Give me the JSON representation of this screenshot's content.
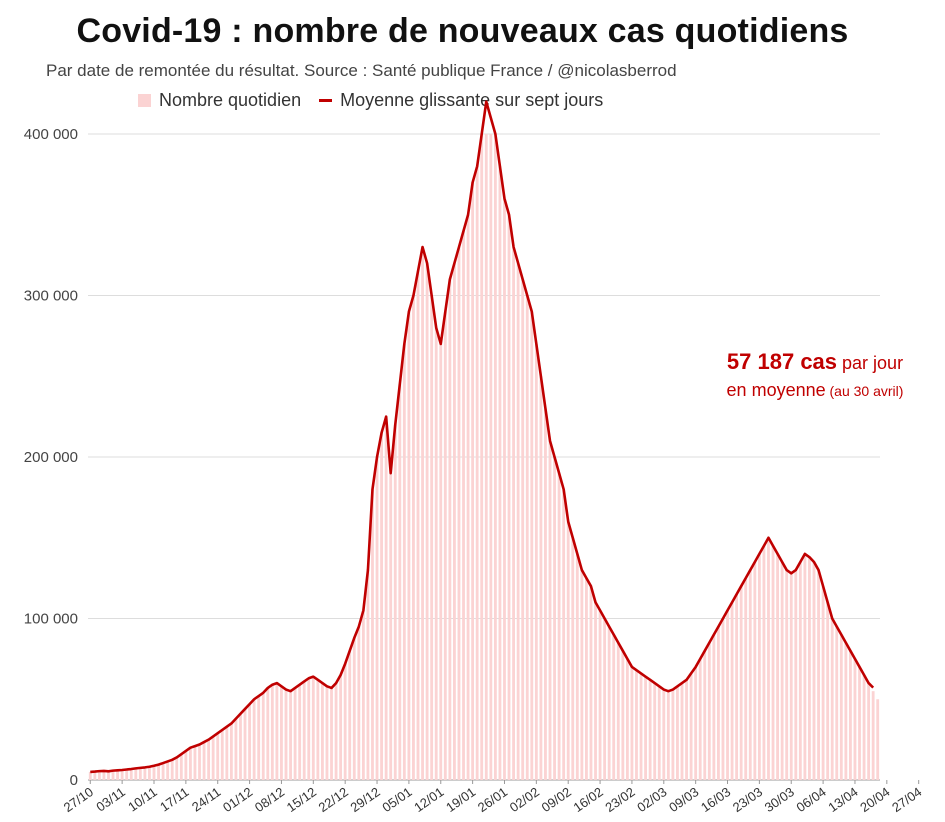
{
  "chart_data": {
    "type": "bar",
    "title": "Covid-19 : nombre de nouveaux cas quotidiens",
    "subtitle": "Par date de remontée du résultat. Source : Santé publique France / @nicolasberrod",
    "ylim": [
      0,
      400000
    ],
    "yticks": [
      0,
      100000,
      200000,
      300000,
      400000
    ],
    "ytick_labels": [
      "0",
      "100 000",
      "200 000",
      "300 000",
      "400 000"
    ],
    "xtick_labels": [
      "27/10",
      "03/11",
      "10/11",
      "17/11",
      "24/11",
      "01/12",
      "08/12",
      "15/12",
      "22/12",
      "29/12",
      "05/01",
      "12/01",
      "19/01",
      "26/01",
      "02/02",
      "09/02",
      "16/02",
      "23/02",
      "02/03",
      "09/03",
      "16/03",
      "23/03",
      "30/03",
      "06/04",
      "13/04",
      "20/04",
      "27/04"
    ],
    "grid": true,
    "legend_position": "top",
    "colors": {
      "bars": "#fbd3d3",
      "line": "#c00000",
      "grid": "#dddddd"
    },
    "series": [
      {
        "name": "Nombre quotidien",
        "type": "bar",
        "values": [
          5000,
          5200,
          5500,
          5600,
          5400,
          5800,
          6000,
          6200,
          6500,
          6800,
          7200,
          7500,
          7800,
          8200,
          8800,
          9500,
          10500,
          11500,
          12500,
          14000,
          16000,
          18000,
          20000,
          21000,
          22000,
          23500,
          25000,
          27000,
          29000,
          31000,
          33000,
          35000,
          38000,
          41000,
          44000,
          47000,
          50000,
          52000,
          54000,
          57000,
          59000,
          60000,
          58000,
          56000,
          55000,
          57000,
          59000,
          61000,
          63000,
          64000,
          62000,
          60000,
          58000,
          57000,
          60000,
          65000,
          72000,
          80000,
          88000,
          95000,
          105000,
          130000,
          180000,
          200000,
          215000,
          225000,
          190000,
          220000,
          245000,
          270000,
          290000,
          300000,
          315000,
          330000,
          320000,
          300000,
          280000,
          270000,
          290000,
          310000,
          320000,
          330000,
          340000,
          350000,
          370000,
          380000,
          400000,
          420000,
          410000,
          400000,
          380000,
          360000,
          350000,
          330000,
          320000,
          310000,
          300000,
          290000,
          270000,
          250000,
          230000,
          210000,
          200000,
          190000,
          180000,
          160000,
          150000,
          140000,
          130000,
          125000,
          120000,
          110000,
          105000,
          100000,
          95000,
          90000,
          85000,
          80000,
          75000,
          70000,
          68000,
          66000,
          64000,
          62000,
          60000,
          58000,
          56000,
          55000,
          56000,
          58000,
          60000,
          62000,
          66000,
          70000,
          75000,
          80000,
          85000,
          90000,
          95000,
          100000,
          105000,
          110000,
          115000,
          120000,
          125000,
          130000,
          135000,
          140000,
          145000,
          150000,
          145000,
          140000,
          135000,
          130000,
          128000,
          130000,
          135000,
          140000,
          138000,
          135000,
          130000,
          120000,
          110000,
          100000,
          95000,
          90000,
          85000,
          80000,
          75000,
          70000,
          65000,
          60000,
          55000,
          50000
        ]
      },
      {
        "name": "Moyenne glissante sur sept jours",
        "type": "line",
        "values": [
          5000,
          5200,
          5500,
          5600,
          5400,
          5800,
          6000,
          6200,
          6500,
          6800,
          7200,
          7500,
          7800,
          8200,
          8800,
          9500,
          10500,
          11500,
          12500,
          14000,
          16000,
          18000,
          20000,
          21000,
          22000,
          23500,
          25000,
          27000,
          29000,
          31000,
          33000,
          35000,
          38000,
          41000,
          44000,
          47000,
          50000,
          52000,
          54000,
          57000,
          59000,
          60000,
          58000,
          56000,
          55000,
          57000,
          59000,
          61000,
          63000,
          64000,
          62000,
          60000,
          58000,
          57000,
          60000,
          65000,
          72000,
          80000,
          88000,
          95000,
          105000,
          130000,
          180000,
          200000,
          215000,
          225000,
          190000,
          220000,
          245000,
          270000,
          290000,
          300000,
          315000,
          330000,
          320000,
          300000,
          280000,
          270000,
          290000,
          310000,
          320000,
          330000,
          340000,
          350000,
          370000,
          380000,
          400000,
          420000,
          410000,
          400000,
          380000,
          360000,
          350000,
          330000,
          320000,
          310000,
          300000,
          290000,
          270000,
          250000,
          230000,
          210000,
          200000,
          190000,
          180000,
          160000,
          150000,
          140000,
          130000,
          125000,
          120000,
          110000,
          105000,
          100000,
          95000,
          90000,
          85000,
          80000,
          75000,
          70000,
          68000,
          66000,
          64000,
          62000,
          60000,
          58000,
          56000,
          55000,
          56000,
          58000,
          60000,
          62000,
          66000,
          70000,
          75000,
          80000,
          85000,
          90000,
          95000,
          100000,
          105000,
          110000,
          115000,
          120000,
          125000,
          130000,
          135000,
          140000,
          145000,
          150000,
          145000,
          140000,
          135000,
          130000,
          128000,
          130000,
          135000,
          140000,
          138000,
          135000,
          130000,
          120000,
          110000,
          100000,
          95000,
          90000,
          85000,
          80000,
          75000,
          70000,
          65000,
          60000,
          57187
        ]
      }
    ],
    "annotation": {
      "value_text": "57 187 cas",
      "text_after_value": " par jour",
      "line2": "en moyenne",
      "line2_small": " (au 30 avril)"
    }
  }
}
